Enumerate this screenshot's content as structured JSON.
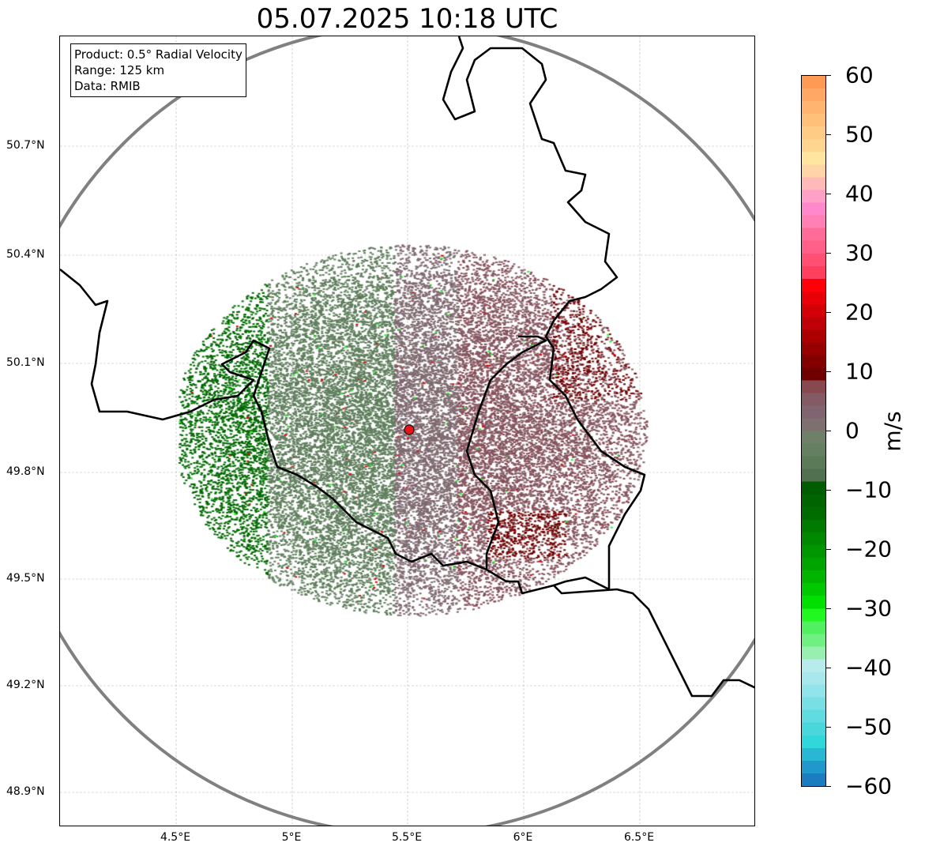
{
  "title": "05.07.2025 10:18 UTC",
  "info_box": [
    "Product: 0.5° Radial Velocity",
    "Range: 125 km",
    "Data: RMIB"
  ],
  "lat_ticks": [
    "50.7°N",
    "50.4°N",
    "50.1°N",
    "49.8°N",
    "49.5°N",
    "49.2°N",
    "48.9°N"
  ],
  "lon_ticks": [
    "4.5°E",
    "5°E",
    "5.5°E",
    "6°E",
    "6.5°E"
  ],
  "radar_site": {
    "lon": 5.5,
    "lat": 49.91,
    "marker_color": "#e8141c"
  },
  "range_km": 125,
  "colorbar": {
    "label": "m/s",
    "ticks": [
      "60",
      "50",
      "40",
      "30",
      "20",
      "10",
      "0",
      "−10",
      "−20",
      "−30",
      "−40",
      "−50",
      "−60"
    ],
    "min": -60,
    "max": 60,
    "colors": [
      "#ff9a55",
      "#ffa866",
      "#ffb470",
      "#ffc07a",
      "#ffcc85",
      "#ffd690",
      "#ffe6a0",
      "#ffd5a8",
      "#ffb9b9",
      "#ffa0c8",
      "#ff88cc",
      "#ff80b4",
      "#ff6c9a",
      "#ff5f88",
      "#ff5074",
      "#ff3f5e",
      "#ff0008",
      "#e80008",
      "#d40008",
      "#c00008",
      "#ac0000",
      "#980000",
      "#840000",
      "#700000",
      "#884850",
      "#845a64",
      "#806470",
      "#7e7070",
      "#6e8068",
      "#648060",
      "#5a7a58",
      "#507050",
      "#005c00",
      "#006400",
      "#006c00",
      "#007a00",
      "#008800",
      "#009600",
      "#00a400",
      "#00b400",
      "#00c800",
      "#00e000",
      "#20f820",
      "#50f060",
      "#70f080",
      "#98f0b0",
      "#b8ecec",
      "#a8e8ec",
      "#90e4ea",
      "#78e0e4",
      "#60dce0",
      "#48d8dc",
      "#30d8dc",
      "#28b8d4",
      "#2098cc",
      "#1c7cc0"
    ]
  }
}
